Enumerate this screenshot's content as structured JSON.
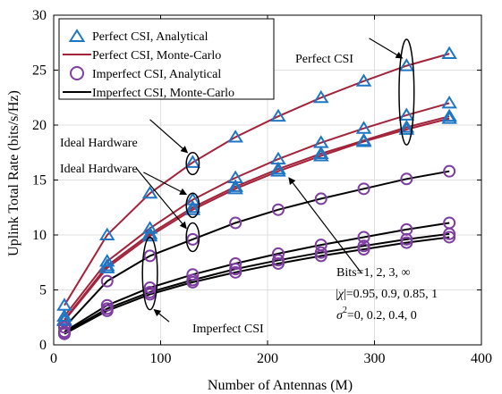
{
  "chart_data": {
    "type": "line",
    "xlabel": "Number of Antennas (M)",
    "ylabel": "Uplink Total Rate (bits/s/Hz)",
    "xlim": [
      0,
      400
    ],
    "ylim": [
      0,
      30
    ],
    "xticks": [
      0,
      100,
      200,
      300,
      400
    ],
    "yticks": [
      0,
      5,
      10,
      15,
      20,
      25,
      30
    ],
    "grid": true,
    "legend_position": "top-left",
    "x": [
      10,
      50,
      90,
      130,
      170,
      210,
      250,
      290,
      330,
      370
    ],
    "legend": [
      {
        "label": "Perfect CSI, Analytical",
        "style": "triangle-marker",
        "color": "#1f77c4"
      },
      {
        "label": "Perfect CSI, Monte-Carlo",
        "style": "line",
        "color": "#a3233a"
      },
      {
        "label": "Imperfect CSI, Analytical",
        "style": "circle-marker",
        "color": "#7e3fa0"
      },
      {
        "label": "Imperfect CSI, Monte-Carlo",
        "style": "line",
        "color": "#000000"
      }
    ],
    "series": [
      {
        "csi": "perfect",
        "values": [
          3.6,
          10.0,
          13.8,
          16.6,
          18.9,
          20.8,
          22.5,
          24.0,
          25.4,
          26.5
        ]
      },
      {
        "csi": "perfect",
        "values": [
          2.6,
          7.6,
          10.6,
          13.2,
          15.2,
          16.9,
          18.4,
          19.7,
          20.9,
          22.0
        ]
      },
      {
        "csi": "perfect",
        "values": [
          2.3,
          7.2,
          10.1,
          12.5,
          14.4,
          16.0,
          17.4,
          18.6,
          19.8,
          20.8
        ]
      },
      {
        "csi": "perfect",
        "values": [
          2.2,
          7.0,
          9.9,
          12.3,
          14.2,
          15.8,
          17.2,
          18.5,
          19.6,
          20.6
        ]
      },
      {
        "csi": "imperfect",
        "values": [
          1.6,
          5.8,
          8.1,
          9.6,
          11.1,
          12.3,
          13.3,
          14.2,
          15.1,
          15.8
        ]
      },
      {
        "csi": "imperfect",
        "values": [
          1.2,
          3.6,
          5.2,
          6.4,
          7.4,
          8.3,
          9.1,
          9.8,
          10.5,
          11.1
        ]
      },
      {
        "csi": "imperfect",
        "values": [
          1.1,
          3.3,
          4.8,
          5.9,
          6.9,
          7.7,
          8.4,
          9.0,
          9.6,
          10.1
        ]
      },
      {
        "csi": "imperfect",
        "values": [
          1.0,
          3.1,
          4.6,
          5.7,
          6.6,
          7.4,
          8.1,
          8.7,
          9.3,
          9.8
        ]
      }
    ],
    "annotations": {
      "perfect_csi": "Perfect CSI",
      "ideal_hw_1": "Ideal Hardware",
      "ideal_hw_2": "Ideal Hardware",
      "imperfect_csi": "Imperfect CSI",
      "bits": "Bits=1, 2, 3, ∞",
      "chi_pre": "|",
      "chi_sym": "χ",
      "chi_post": "|=0.95, 0.9, 0.85, 1",
      "sigma_sym": "σ",
      "sigma_sup": "2",
      "sigma_post": "=0, 0.2, 0.4, 0"
    },
    "ellipses": [
      {
        "x": 330,
        "y": 23.0,
        "rx": 7,
        "ry": 4.8
      },
      {
        "x": 130,
        "y": 16.5,
        "rx": 6,
        "ry": 1.0
      },
      {
        "x": 130,
        "y": 12.7,
        "rx": 6,
        "ry": 1.1
      },
      {
        "x": 130,
        "y": 9.8,
        "rx": 6,
        "ry": 1.3
      },
      {
        "x": 90,
        "y": 6.5,
        "rx": 7,
        "ry": 3.3
      }
    ],
    "arrows": [
      {
        "from": [
          295,
          27.9
        ],
        "to": [
          326,
          26.1
        ]
      },
      {
        "from": [
          90,
          20.5
        ],
        "to": [
          125,
          17.5
        ]
      },
      {
        "from": [
          84,
          15.7
        ],
        "to": [
          124,
          13.7
        ]
      },
      {
        "from": [
          77,
          16.1
        ],
        "to": [
          124,
          10.6
        ]
      },
      {
        "from": [
          288,
          6.5
        ],
        "to": [
          220,
          15.2
        ]
      },
      {
        "from": [
          108,
          2.1
        ],
        "to": [
          94,
          3.2
        ]
      }
    ],
    "colors": {
      "perfect_line": "#a3233a",
      "perfect_marker": "#1f77c4",
      "imperfect_line": "#000000",
      "imperfect_marker": "#7e3fa0",
      "grid": "#dfdfdf"
    }
  }
}
